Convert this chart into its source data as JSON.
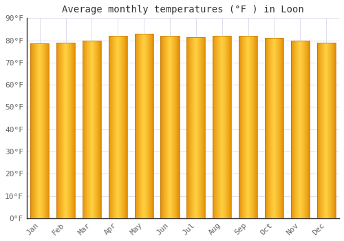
{
  "title": "Average monthly temperatures (°F ) in Loon",
  "months": [
    "Jan",
    "Feb",
    "Mar",
    "Apr",
    "May",
    "Jun",
    "Jul",
    "Aug",
    "Sep",
    "Oct",
    "Nov",
    "Dec"
  ],
  "values": [
    78.5,
    79.0,
    80.0,
    82.0,
    83.0,
    82.0,
    81.5,
    82.0,
    82.0,
    81.0,
    80.0,
    79.0
  ],
  "ylim": [
    0,
    90
  ],
  "yticks": [
    0,
    10,
    20,
    30,
    40,
    50,
    60,
    70,
    80,
    90
  ],
  "ytick_labels": [
    "0°F",
    "10°F",
    "20°F",
    "30°F",
    "40°F",
    "50°F",
    "60°F",
    "70°F",
    "80°F",
    "90°F"
  ],
  "bar_color_light": "#FFD040",
  "bar_color_dark": "#E08800",
  "bar_edge_color": "#C07000",
  "background_color": "#FFFFFF",
  "plot_bg_color": "#FFFFFF",
  "grid_color": "#DDDDEE",
  "title_fontsize": 10,
  "tick_fontsize": 8,
  "figsize": [
    5.0,
    3.5
  ],
  "dpi": 100
}
